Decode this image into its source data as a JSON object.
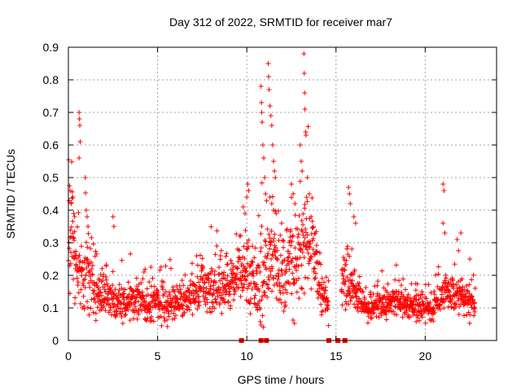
{
  "chart_data": {
    "type": "scatter",
    "title": "Day 312 of 2022, SRMTID for receiver mar7",
    "xlabel": "GPS time / hours",
    "ylabel": "SRMTID / TECUs",
    "xlim": [
      0,
      24
    ],
    "ylim": [
      0,
      0.9
    ],
    "x_ticks": [
      0,
      5,
      10,
      15,
      20
    ],
    "x_tick_labels": [
      "0",
      "5",
      "10",
      "15",
      "20"
    ],
    "y_ticks": [
      0,
      0.1,
      0.2,
      0.3,
      0.4,
      0.5,
      0.6,
      0.7,
      0.8,
      0.9
    ],
    "y_tick_labels": [
      "0",
      "0.1",
      "0.2",
      "0.3",
      "0.4",
      "0.5",
      "0.6",
      "0.7",
      "0.8",
      "0.9"
    ],
    "grid": true,
    "marker": "+",
    "color": "#ff0000",
    "series": [
      {
        "name": "SRMTID",
        "profile_x": [
          0.0,
          0.2,
          0.5,
          0.8,
          1.0,
          1.5,
          2.0,
          2.5,
          3.0,
          3.5,
          4.0,
          4.5,
          5.0,
          5.5,
          6.0,
          6.5,
          7.0,
          7.5,
          8.0,
          8.5,
          9.0,
          9.5,
          10.0,
          10.3,
          10.6,
          10.9,
          11.2,
          11.5,
          11.8,
          12.1,
          12.4,
          12.7,
          13.0,
          13.3,
          13.6,
          13.9,
          14.2,
          14.5,
          15.3,
          15.6,
          16.0,
          16.5,
          17.0,
          17.5,
          18.0,
          18.5,
          19.0,
          19.5,
          20.0,
          20.5,
          21.0,
          21.5,
          22.0,
          22.5,
          22.8
        ],
        "profile_median": [
          0.33,
          0.3,
          0.22,
          0.17,
          0.2,
          0.15,
          0.14,
          0.13,
          0.12,
          0.13,
          0.12,
          0.11,
          0.12,
          0.11,
          0.12,
          0.13,
          0.15,
          0.15,
          0.16,
          0.17,
          0.17,
          0.2,
          0.22,
          0.18,
          0.17,
          0.2,
          0.24,
          0.26,
          0.22,
          0.2,
          0.24,
          0.22,
          0.28,
          0.3,
          0.32,
          0.22,
          0.15,
          0.1,
          0.16,
          0.2,
          0.15,
          0.11,
          0.1,
          0.11,
          0.12,
          0.12,
          0.11,
          0.11,
          0.1,
          0.11,
          0.15,
          0.14,
          0.14,
          0.13,
          0.11
        ],
        "profile_spread": [
          0.1,
          0.12,
          0.1,
          0.09,
          0.1,
          0.07,
          0.06,
          0.06,
          0.06,
          0.05,
          0.05,
          0.05,
          0.05,
          0.05,
          0.05,
          0.05,
          0.06,
          0.06,
          0.06,
          0.06,
          0.06,
          0.07,
          0.1,
          0.09,
          0.1,
          0.14,
          0.12,
          0.11,
          0.1,
          0.1,
          0.12,
          0.11,
          0.12,
          0.14,
          0.12,
          0.1,
          0.07,
          0.05,
          0.06,
          0.1,
          0.06,
          0.04,
          0.04,
          0.04,
          0.04,
          0.04,
          0.04,
          0.04,
          0.04,
          0.04,
          0.05,
          0.05,
          0.05,
          0.05,
          0.04
        ],
        "points_per_hour": 80,
        "data_gaps_hours": [
          [
            14.6,
            15.3
          ]
        ],
        "spikes": [
          [
            0.1,
            0.46
          ],
          [
            0.15,
            0.42
          ],
          [
            0.25,
            0.44
          ],
          [
            0.3,
            0.39
          ],
          [
            0.35,
            0.38
          ],
          [
            0.6,
            0.7
          ],
          [
            0.62,
            0.68
          ],
          [
            0.64,
            0.66
          ],
          [
            0.66,
            0.61
          ],
          [
            0.6,
            0.56
          ],
          [
            0.95,
            0.5
          ],
          [
            1.0,
            0.4
          ],
          [
            1.05,
            0.38
          ],
          [
            1.1,
            0.35
          ],
          [
            2.5,
            0.38
          ],
          [
            2.55,
            0.35
          ],
          [
            9.8,
            0.41
          ],
          [
            9.9,
            0.39
          ],
          [
            10.0,
            0.44
          ],
          [
            10.05,
            0.48
          ],
          [
            10.1,
            0.46
          ],
          [
            10.8,
            0.78
          ],
          [
            10.82,
            0.73
          ],
          [
            10.84,
            0.7
          ],
          [
            10.86,
            0.67
          ],
          [
            10.9,
            0.6
          ],
          [
            10.95,
            0.56
          ],
          [
            11.0,
            0.5
          ],
          [
            11.05,
            0.45
          ],
          [
            11.2,
            0.85
          ],
          [
            11.22,
            0.81
          ],
          [
            11.25,
            0.77
          ],
          [
            11.3,
            0.72
          ],
          [
            11.35,
            0.69
          ],
          [
            11.4,
            0.66
          ],
          [
            11.45,
            0.6
          ],
          [
            11.5,
            0.55
          ],
          [
            11.55,
            0.52
          ],
          [
            11.6,
            0.5
          ],
          [
            11.3,
            0.44
          ],
          [
            11.4,
            0.42
          ],
          [
            11.5,
            0.4
          ],
          [
            12.5,
            0.48
          ],
          [
            12.6,
            0.45
          ],
          [
            12.7,
            0.42
          ],
          [
            13.0,
            0.6
          ],
          [
            13.05,
            0.55
          ],
          [
            13.1,
            0.52
          ],
          [
            13.2,
            0.88
          ],
          [
            13.22,
            0.82
          ],
          [
            13.24,
            0.76
          ],
          [
            13.26,
            0.71
          ],
          [
            13.3,
            0.64
          ],
          [
            13.32,
            0.63
          ],
          [
            13.4,
            0.5
          ],
          [
            13.5,
            0.45
          ],
          [
            15.7,
            0.47
          ],
          [
            15.75,
            0.45
          ],
          [
            15.8,
            0.42
          ],
          [
            16.0,
            0.38
          ],
          [
            16.1,
            0.36
          ],
          [
            21.0,
            0.48
          ],
          [
            21.05,
            0.46
          ],
          [
            21.0,
            0.36
          ],
          [
            21.1,
            0.33
          ],
          [
            22.0,
            0.33
          ],
          [
            22.5,
            0.25
          ]
        ],
        "zero_markers": [
          9.7,
          10.8,
          11.1,
          14.6,
          15.1,
          15.5
        ]
      }
    ]
  }
}
